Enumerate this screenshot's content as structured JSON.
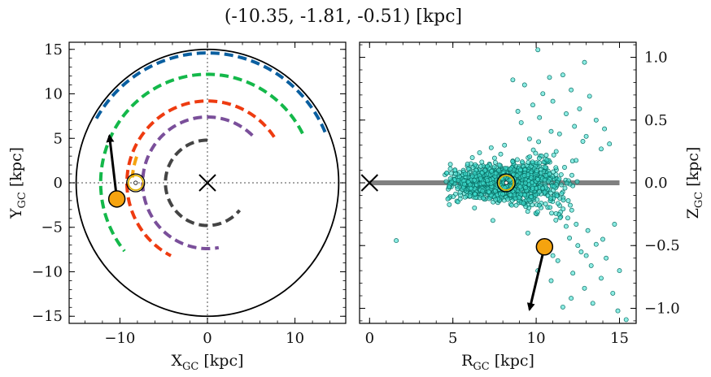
{
  "figure": {
    "title": "(-10.35, -1.81, -0.51) [kpc]"
  },
  "chart_data": [
    {
      "type": "line",
      "panel": "left",
      "xlabel_main": "X",
      "xlabel_sub": "GC",
      "xlabel_unit": " [kpc]",
      "ylabel_main": "Y",
      "ylabel_sub": "GC",
      "ylabel_unit": " [kpc]",
      "xlim": [
        -15.8,
        15.8
      ],
      "ylim": [
        -15.8,
        15.8
      ],
      "xticks": [
        -10,
        0,
        10
      ],
      "xtick_labels": [
        "−10",
        "0",
        "10"
      ],
      "yticks": [
        -15,
        -10,
        -5,
        0,
        5,
        10,
        15
      ],
      "ytick_labels": [
        "−15",
        "−10",
        "−5",
        "0",
        "5",
        "10",
        "15"
      ],
      "grid": false,
      "boundary_circle_radius": 15,
      "galactic_center": [
        0,
        0
      ],
      "sun": {
        "x": -8.2,
        "y": 0.0
      },
      "star": {
        "x": -10.35,
        "y": -1.81
      },
      "velocity_arrow": {
        "from": [
          -10.35,
          -1.81
        ],
        "to": [
          -11.2,
          5.3
        ]
      },
      "colors": {
        "arrow": "#000000",
        "star": "#f5a30f",
        "sun": "#e0b000",
        "reference_lines": "#888888"
      },
      "arms": [
        {
          "color": "#0a5fa0",
          "r": 14.6,
          "theta_start_deg": 23,
          "theta_end_deg": 151
        },
        {
          "color": "#14b84a",
          "r": 12.2,
          "theta_start_deg": 27,
          "theta_end_deg": 219
        },
        {
          "color": "#f5a30f",
          "r": 8.6,
          "theta_start_deg": 160,
          "theta_end_deg": 176
        },
        {
          "color": "#ee3b10",
          "r": 9.2,
          "theta_start_deg": 34,
          "theta_end_deg": 243
        },
        {
          "color": "#7a4f9a",
          "r": 7.4,
          "theta_start_deg": 46,
          "theta_end_deg": 280
        },
        {
          "color": "#444444",
          "r": 4.8,
          "theta_start_deg": 90,
          "theta_end_deg": 320
        }
      ]
    },
    {
      "type": "scatter",
      "panel": "right",
      "xlabel_main": "R",
      "xlabel_sub": "GC",
      "xlabel_unit": " [kpc]",
      "ylabel_main": "Z",
      "ylabel_sub": "GC",
      "ylabel_unit": " [kpc]",
      "xlim": [
        -0.6,
        16.0
      ],
      "ylim": [
        -1.12,
        1.12
      ],
      "xticks": [
        0,
        5,
        10,
        15
      ],
      "xtick_labels": [
        "0",
        "5",
        "10",
        "15"
      ],
      "yticks": [
        -1.0,
        -0.5,
        0.0,
        0.5,
        1.0
      ],
      "ytick_labels": [
        "−1.0",
        "−0.5",
        "0.0",
        "0.5",
        "1.0"
      ],
      "grid": false,
      "disk_plane": {
        "z": 0,
        "r_range": [
          0,
          15
        ]
      },
      "galactic_center": [
        0,
        0
      ],
      "sun": {
        "r": 8.2,
        "z": 0.0
      },
      "star": {
        "r": 10.5,
        "z": -0.51
      },
      "velocity_arrow": {
        "from": [
          10.5,
          -0.51
        ],
        "to": [
          9.6,
          -1.01
        ]
      },
      "colors": {
        "points": "#40e0d0",
        "point_edge": "#0a6e64",
        "disk": "#808080",
        "star": "#f5a30f",
        "sun": "#e0b000"
      },
      "points_core": {
        "count": 1350,
        "r_range": [
          4.5,
          12.5
        ],
        "z_spread": 0.06
      },
      "points_tail": [
        [
          10.1,
          1.06
        ],
        [
          12.9,
          0.96
        ],
        [
          11.6,
          0.86
        ],
        [
          10.8,
          0.84
        ],
        [
          8.6,
          0.82
        ],
        [
          9.3,
          0.78
        ],
        [
          12.1,
          0.74
        ],
        [
          10.4,
          0.71
        ],
        [
          13.2,
          0.69
        ],
        [
          11.0,
          0.65
        ],
        [
          9.8,
          0.62
        ],
        [
          12.6,
          0.59
        ],
        [
          8.9,
          0.57
        ],
        [
          11.8,
          0.55
        ],
        [
          10.2,
          0.52
        ],
        [
          13.6,
          0.5
        ],
        [
          9.1,
          0.48
        ],
        [
          12.3,
          0.45
        ],
        [
          14.1,
          0.43
        ],
        [
          10.9,
          0.41
        ],
        [
          11.4,
          0.39
        ],
        [
          13.0,
          0.37
        ],
        [
          9.6,
          0.35
        ],
        [
          12.8,
          0.33
        ],
        [
          14.4,
          0.31
        ],
        [
          8.1,
          0.3
        ],
        [
          7.3,
          0.28
        ],
        [
          13.9,
          0.27
        ],
        [
          11.2,
          0.25
        ],
        [
          6.6,
          0.24
        ],
        [
          1.6,
          -0.46
        ],
        [
          11.9,
          -0.28
        ],
        [
          12.4,
          -0.33
        ],
        [
          13.1,
          -0.38
        ],
        [
          12.0,
          -0.44
        ],
        [
          13.6,
          -0.49
        ],
        [
          12.7,
          -0.55
        ],
        [
          14.2,
          -0.6
        ],
        [
          13.3,
          -0.66
        ],
        [
          11.3,
          -0.62
        ],
        [
          12.2,
          -0.72
        ],
        [
          13.9,
          -0.76
        ],
        [
          10.9,
          -0.78
        ],
        [
          12.9,
          -0.84
        ],
        [
          14.6,
          -0.88
        ],
        [
          12.1,
          -0.92
        ],
        [
          13.4,
          -0.96
        ],
        [
          11.6,
          -0.99
        ],
        [
          14.9,
          -1.02
        ],
        [
          15.4,
          -1.09
        ],
        [
          10.1,
          -0.7
        ],
        [
          9.5,
          -0.4
        ],
        [
          14.0,
          -0.45
        ],
        [
          15.0,
          -0.7
        ],
        [
          13.0,
          -0.58
        ],
        [
          7.4,
          -0.3
        ],
        [
          6.3,
          -0.2
        ],
        [
          14.7,
          -0.33
        ],
        [
          12.5,
          -0.5
        ],
        [
          11.0,
          -0.58
        ]
      ]
    }
  ]
}
